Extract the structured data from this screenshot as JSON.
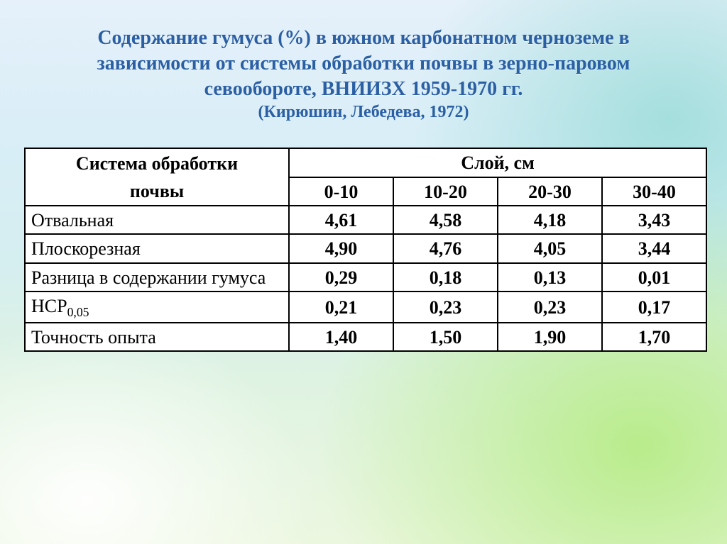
{
  "title": {
    "line1": "Содержание гумуса (%) в южном карбонатном черноземе  в",
    "line2": "зависимости от системы обработки почвы в зерно-паровом",
    "line3": "севообороте, ВНИИЗХ 1959-1970 гг.",
    "sub": "(Кирюшин, Лебедева, 1972)"
  },
  "table": {
    "corner_label_top": "Система обработки",
    "corner_label_bottom": "почвы",
    "group_header": "Слой, см",
    "columns": [
      "0-10",
      "10-20",
      "20-30",
      "30-40"
    ],
    "rows": [
      {
        "label": "Отвальная",
        "values": [
          "4,61",
          "4,58",
          "4,18",
          "3,43"
        ]
      },
      {
        "label": "Плоскорезная",
        "values": [
          "4,90",
          "4,76",
          "4,05",
          "3,44"
        ]
      },
      {
        "label": "Разница в содержании гумуса",
        "values": [
          "0,29",
          "0,18",
          "0,13",
          "0,01"
        ]
      },
      {
        "label": "НСР",
        "label_sub": "0,05",
        "values": [
          "0,21",
          "0,23",
          "0,23",
          "0,17"
        ]
      },
      {
        "label": "Точность опыта",
        "values": [
          "1,40",
          "1,50",
          "1,90",
          "1,70"
        ]
      }
    ]
  },
  "style": {
    "title_color": "#2b5fa4",
    "title_fontsize_main": 28,
    "title_fontsize_sub": 24,
    "table_fontsize": 26,
    "border_color": "#000000",
    "cell_bg": "#ffffff",
    "slide_bg_stops": [
      "#e5f0fa",
      "#d9eef7",
      "#d5eef0",
      "#dff3e2",
      "#ecf7e0"
    ]
  }
}
